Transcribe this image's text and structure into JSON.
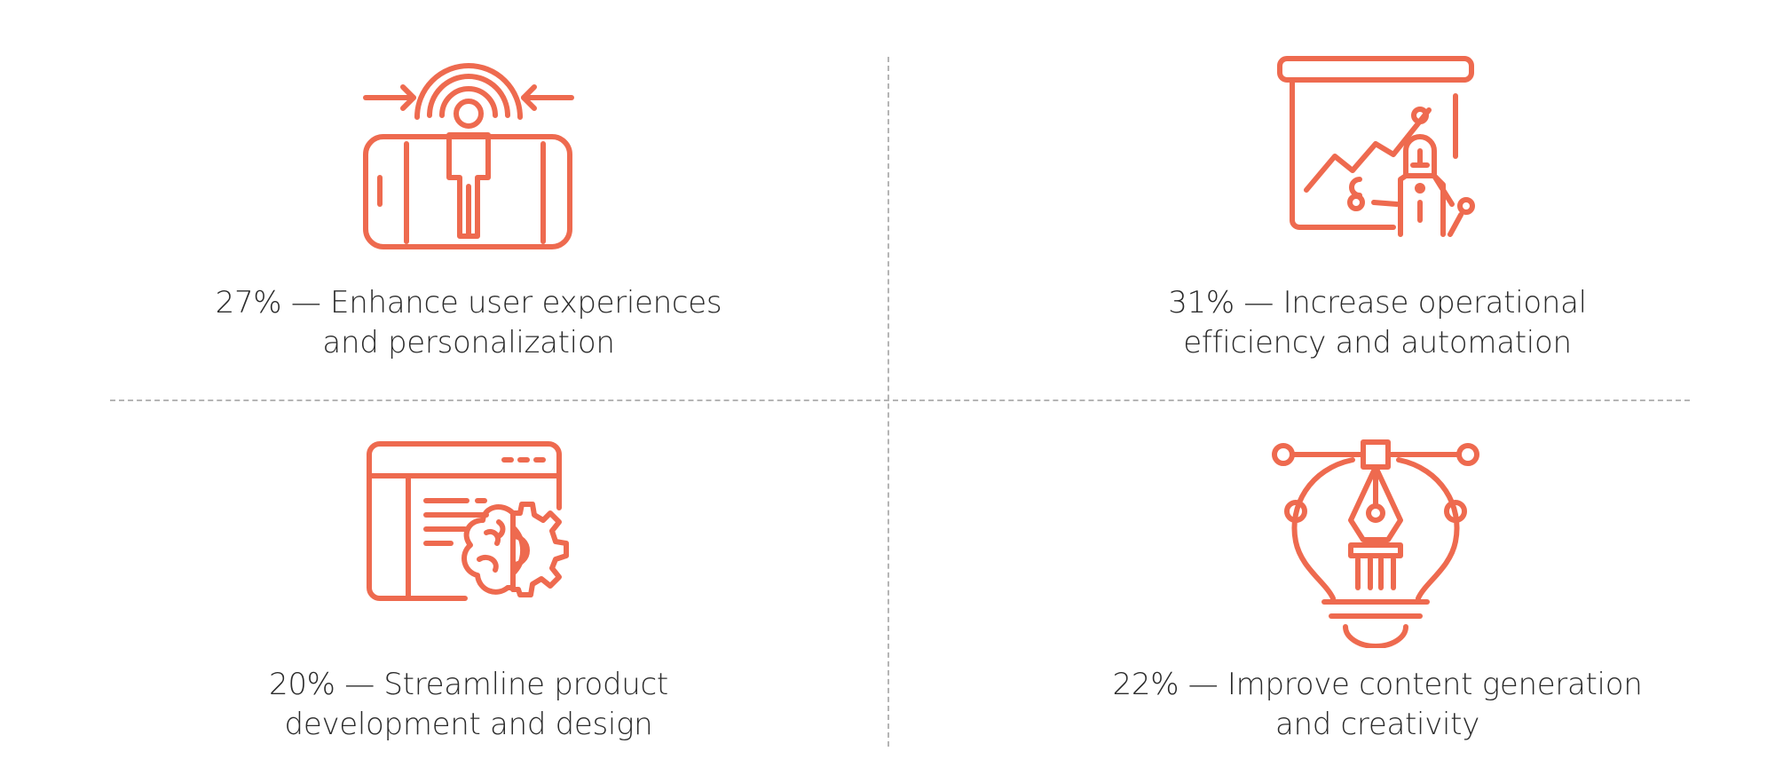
{
  "accent_color": "#ee6a4f",
  "items": [
    {
      "icon": "user-experience-icon",
      "line1": "27% — Enhance user experiences",
      "line2": "and personalization"
    },
    {
      "icon": "presentation-analytics-icon",
      "line1": "31% — Increase operational",
      "line2": "efficiency and automation"
    },
    {
      "icon": "ai-product-design-icon",
      "line1": "20% — Streamline product",
      "line2": "development and design"
    },
    {
      "icon": "creative-idea-bulb-icon",
      "line1": "22% — Improve content generation",
      "line2": "and creativity"
    }
  ]
}
